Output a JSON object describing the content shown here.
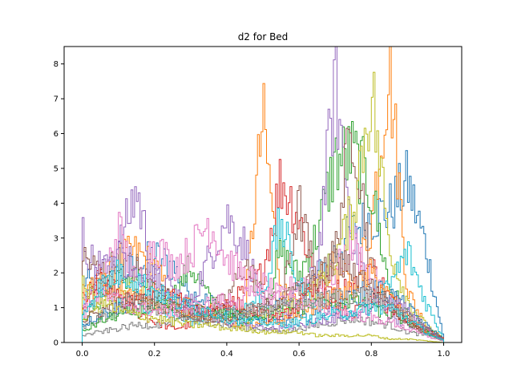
{
  "chart_data": {
    "type": "line",
    "title": "d2 for Bed",
    "xlabel": "",
    "ylabel": "",
    "xlim": [
      -0.05,
      1.05
    ],
    "ylim": [
      0,
      8.5
    ],
    "x_ticks": [
      "0.0",
      "0.2",
      "0.4",
      "0.6",
      "0.8",
      "1.0"
    ],
    "y_ticks": [
      "0",
      "1",
      "2",
      "3",
      "4",
      "5",
      "6",
      "7",
      "8"
    ],
    "grid": false,
    "legend": "none",
    "style": "step histograms, density-normalized, one per sample",
    "series_colors": [
      "#1f77b4",
      "#ff7f0e",
      "#2ca02c",
      "#d62728",
      "#9467bd",
      "#8c564b",
      "#e377c2",
      "#7f7f7f",
      "#bcbd22",
      "#17becf"
    ],
    "series": [
      {
        "x": [
          0.0,
          0.05,
          0.1,
          0.15,
          0.2,
          0.25,
          0.3,
          0.35,
          0.4,
          0.45,
          0.5,
          0.55,
          0.6,
          0.65,
          0.7,
          0.75,
          0.8,
          0.85,
          0.9,
          0.95,
          1.0
        ],
        "values": [
          1.8,
          1.6,
          1.9,
          2.2,
          2.5,
          2.2,
          1.4,
          1.2,
          1.0,
          0.8,
          0.9,
          1.1,
          1.4,
          1.9,
          2.6,
          3.2,
          3.6,
          3.8,
          4.6,
          2.8,
          0.1
        ]
      },
      {
        "x": [
          0.0,
          0.05,
          0.1,
          0.15,
          0.2,
          0.25,
          0.3,
          0.35,
          0.4,
          0.45,
          0.5,
          0.55,
          0.6,
          0.65,
          0.7,
          0.75,
          0.8,
          0.85,
          0.9,
          0.95,
          1.0
        ],
        "values": [
          0.9,
          1.4,
          2.4,
          2.6,
          2.2,
          1.2,
          1.1,
          1.0,
          0.6,
          0.9,
          6.4,
          1.6,
          1.0,
          1.8,
          2.2,
          1.6,
          3.4,
          8.1,
          1.5,
          0.5,
          0.1
        ]
      },
      {
        "x": [
          0.0,
          0.05,
          0.1,
          0.15,
          0.2,
          0.25,
          0.3,
          0.35,
          0.4,
          0.45,
          0.5,
          0.55,
          0.6,
          0.65,
          0.7,
          0.75,
          0.8,
          0.85,
          0.9,
          0.95,
          1.0
        ],
        "values": [
          0.7,
          1.2,
          1.8,
          1.9,
          1.4,
          1.3,
          2.2,
          1.3,
          0.8,
          0.6,
          0.9,
          2.6,
          1.9,
          3.1,
          5.2,
          5.4,
          4.4,
          1.6,
          0.8,
          0.4,
          0.1
        ]
      },
      {
        "x": [
          0.0,
          0.05,
          0.1,
          0.15,
          0.2,
          0.25,
          0.3,
          0.35,
          0.4,
          0.45,
          0.5,
          0.55,
          0.6,
          0.65,
          0.7,
          0.75,
          0.8,
          0.85,
          0.9,
          0.95,
          1.0
        ],
        "values": [
          1.2,
          1.7,
          1.1,
          0.9,
          0.6,
          0.4,
          0.5,
          0.8,
          1.0,
          1.5,
          2.0,
          4.7,
          3.6,
          1.7,
          1.5,
          1.6,
          2.2,
          1.3,
          0.8,
          0.4,
          0.1
        ]
      },
      {
        "x": [
          0.0,
          0.05,
          0.1,
          0.15,
          0.2,
          0.25,
          0.3,
          0.35,
          0.4,
          0.45,
          0.5,
          0.55,
          0.6,
          0.65,
          0.7,
          0.75,
          0.8,
          0.85,
          0.9,
          0.95,
          1.0
        ],
        "values": [
          3.1,
          1.8,
          2.6,
          4.4,
          1.9,
          1.5,
          1.1,
          2.4,
          3.6,
          2.8,
          1.1,
          0.8,
          1.0,
          2.2,
          7.4,
          3.0,
          1.4,
          0.8,
          0.5,
          0.3,
          0.1
        ]
      },
      {
        "x": [
          0.0,
          0.05,
          0.1,
          0.15,
          0.2,
          0.25,
          0.3,
          0.35,
          0.4,
          0.45,
          0.5,
          0.55,
          0.6,
          0.65,
          0.7,
          0.75,
          0.8,
          0.85,
          0.9,
          0.95,
          1.0
        ],
        "values": [
          2.5,
          2.0,
          2.3,
          2.1,
          1.6,
          1.2,
          0.9,
          1.0,
          1.2,
          2.3,
          1.4,
          1.1,
          3.9,
          1.7,
          2.6,
          6.5,
          2.1,
          1.0,
          0.6,
          0.3,
          0.1
        ]
      },
      {
        "x": [
          0.0,
          0.05,
          0.1,
          0.15,
          0.2,
          0.25,
          0.3,
          0.35,
          0.4,
          0.45,
          0.5,
          0.55,
          0.6,
          0.65,
          0.7,
          0.75,
          0.8,
          0.85,
          0.9,
          0.95,
          1.0
        ],
        "values": [
          0.8,
          1.4,
          3.3,
          1.6,
          2.9,
          2.2,
          2.6,
          3.5,
          2.4,
          1.9,
          1.7,
          1.3,
          1.8,
          1.5,
          2.0,
          2.8,
          1.9,
          1.2,
          0.8,
          0.4,
          0.1
        ]
      },
      {
        "x": [
          0.0,
          0.05,
          0.1,
          0.15,
          0.2,
          0.25,
          0.3,
          0.35,
          0.4,
          0.45,
          0.5,
          0.55,
          0.6,
          0.65,
          0.7,
          0.75,
          0.8,
          0.85,
          0.9,
          0.95,
          1.0
        ],
        "values": [
          0.4,
          0.7,
          0.9,
          1.1,
          1.0,
          0.8,
          0.7,
          0.6,
          0.5,
          0.4,
          0.4,
          0.3,
          0.4,
          0.5,
          0.6,
          0.7,
          0.6,
          0.5,
          0.3,
          0.2,
          0.05
        ]
      },
      {
        "x": [
          0.0,
          0.05,
          0.1,
          0.15,
          0.2,
          0.25,
          0.3,
          0.35,
          0.4,
          0.45,
          0.5,
          0.55,
          0.6,
          0.65,
          0.7,
          0.75,
          0.8,
          0.85,
          0.9,
          0.95,
          1.0
        ],
        "values": [
          0.6,
          1.0,
          1.3,
          1.5,
          1.4,
          1.1,
          0.9,
          0.8,
          0.7,
          0.7,
          0.8,
          0.9,
          1.2,
          1.6,
          2.4,
          3.8,
          7.3,
          2.8,
          1.2,
          0.5,
          0.1
        ]
      },
      {
        "x": [
          0.0,
          0.05,
          0.1,
          0.15,
          0.2,
          0.25,
          0.3,
          0.35,
          0.4,
          0.45,
          0.5,
          0.55,
          0.6,
          0.65,
          0.7,
          0.75,
          0.8,
          0.85,
          0.9,
          0.95,
          1.0
        ],
        "values": [
          1.2,
          1.5,
          1.3,
          1.1,
          0.9,
          0.8,
          0.6,
          0.7,
          0.8,
          1.0,
          1.4,
          3.5,
          1.6,
          1.2,
          0.9,
          0.8,
          1.0,
          1.6,
          2.6,
          1.2,
          0.1
        ]
      },
      {
        "x": [
          0.0,
          0.05,
          0.1,
          0.15,
          0.2,
          0.25,
          0.3,
          0.35,
          0.4,
          0.45,
          0.5,
          0.55,
          0.6,
          0.65,
          0.7,
          0.75,
          0.8,
          0.85,
          0.9,
          0.95,
          1.0
        ],
        "values": [
          0.5,
          0.8,
          1.0,
          1.2,
          1.3,
          1.2,
          1.0,
          0.9,
          0.8,
          0.7,
          0.6,
          0.6,
          0.7,
          0.8,
          1.0,
          1.3,
          1.6,
          1.4,
          1.0,
          0.5,
          0.1
        ]
      },
      {
        "x": [
          0.0,
          0.05,
          0.1,
          0.15,
          0.2,
          0.25,
          0.3,
          0.35,
          0.4,
          0.45,
          0.5,
          0.55,
          0.6,
          0.65,
          0.7,
          0.75,
          0.8,
          0.85,
          0.9,
          0.95,
          1.0
        ],
        "values": [
          1.4,
          1.7,
          1.5,
          1.3,
          1.2,
          1.0,
          0.9,
          0.8,
          0.6,
          0.5,
          0.5,
          0.6,
          0.8,
          1.1,
          1.3,
          1.5,
          2.0,
          1.3,
          0.7,
          0.3,
          0.05
        ]
      },
      {
        "x": [
          0.0,
          0.05,
          0.1,
          0.15,
          0.2,
          0.25,
          0.3,
          0.35,
          0.4,
          0.45,
          0.5,
          0.55,
          0.6,
          0.65,
          0.7,
          0.75,
          0.8,
          0.85,
          0.9,
          0.95,
          1.0
        ],
        "values": [
          0.3,
          0.6,
          0.8,
          0.9,
          1.0,
          1.0,
          0.9,
          0.9,
          0.8,
          0.8,
          0.8,
          0.9,
          1.0,
          1.1,
          1.2,
          1.2,
          1.0,
          0.8,
          0.6,
          0.3,
          0.05
        ]
      },
      {
        "x": [
          0.0,
          0.05,
          0.1,
          0.15,
          0.2,
          0.25,
          0.3,
          0.35,
          0.4,
          0.45,
          0.5,
          0.55,
          0.6,
          0.65,
          0.7,
          0.75,
          0.8,
          0.85,
          0.9,
          0.95,
          1.0
        ],
        "values": [
          1.0,
          1.9,
          1.4,
          1.1,
          1.5,
          1.3,
          1.0,
          0.9,
          1.2,
          1.0,
          0.8,
          0.7,
          1.1,
          1.5,
          1.0,
          0.8,
          1.3,
          1.0,
          0.6,
          0.4,
          0.1
        ]
      },
      {
        "x": [
          0.0,
          0.05,
          0.1,
          0.15,
          0.2,
          0.25,
          0.3,
          0.35,
          0.4,
          0.45,
          0.5,
          0.55,
          0.6,
          0.65,
          0.7,
          0.75,
          0.8,
          0.85,
          0.9,
          0.95,
          1.0
        ],
        "values": [
          0.9,
          2.3,
          2.6,
          2.1,
          1.8,
          1.3,
          1.0,
          0.8,
          0.6,
          0.5,
          0.4,
          0.4,
          0.5,
          0.6,
          0.7,
          0.8,
          1.1,
          1.2,
          0.9,
          0.4,
          0.1
        ]
      },
      {
        "x": [
          0.0,
          0.05,
          0.1,
          0.15,
          0.2,
          0.25,
          0.3,
          0.35,
          0.4,
          0.45,
          0.5,
          0.55,
          0.6,
          0.65,
          0.7,
          0.75,
          0.8,
          0.85,
          0.9,
          0.95,
          1.0
        ],
        "values": [
          0.6,
          0.9,
          1.1,
          1.3,
          1.1,
          1.0,
          0.8,
          0.7,
          0.7,
          0.8,
          1.0,
          1.2,
          1.5,
          1.8,
          2.3,
          2.1,
          1.6,
          1.1,
          0.6,
          0.3,
          0.05
        ]
      },
      {
        "x": [
          0.0,
          0.05,
          0.1,
          0.15,
          0.2,
          0.25,
          0.3,
          0.35,
          0.4,
          0.45,
          0.5,
          0.55,
          0.6,
          0.65,
          0.7,
          0.75,
          0.8,
          0.85,
          0.9,
          0.95,
          1.0
        ],
        "values": [
          1.1,
          1.3,
          1.2,
          1.0,
          0.9,
          0.9,
          1.0,
          1.1,
          1.2,
          1.3,
          1.4,
          1.3,
          1.2,
          1.0,
          0.9,
          0.8,
          0.7,
          0.6,
          0.4,
          0.2,
          0.05
        ]
      },
      {
        "x": [
          0.0,
          0.05,
          0.1,
          0.15,
          0.2,
          0.25,
          0.3,
          0.35,
          0.4,
          0.45,
          0.5,
          0.55,
          0.6,
          0.65,
          0.7,
          0.75,
          0.8,
          0.85,
          0.9,
          0.95,
          1.0
        ],
        "values": [
          0.2,
          0.3,
          0.4,
          0.5,
          0.5,
          0.6,
          0.6,
          0.7,
          0.8,
          0.9,
          1.0,
          1.0,
          1.1,
          1.2,
          1.3,
          1.4,
          1.3,
          1.1,
          0.8,
          0.4,
          0.1
        ]
      },
      {
        "x": [
          0.0,
          0.05,
          0.1,
          0.15,
          0.2,
          0.25,
          0.3,
          0.35,
          0.4,
          0.45,
          0.5,
          0.55,
          0.6,
          0.65,
          0.7,
          0.75,
          0.8,
          0.85,
          0.9,
          0.95,
          1.0
        ],
        "values": [
          1.6,
          1.2,
          0.9,
          0.8,
          0.7,
          0.6,
          0.5,
          0.5,
          0.4,
          0.4,
          0.3,
          0.3,
          0.3,
          0.2,
          0.2,
          0.2,
          0.2,
          0.1,
          0.1,
          0.05,
          0.0
        ]
      },
      {
        "x": [
          0.0,
          0.05,
          0.1,
          0.15,
          0.2,
          0.25,
          0.3,
          0.35,
          0.4,
          0.45,
          0.5,
          0.55,
          0.6,
          0.65,
          0.7,
          0.75,
          0.8,
          0.85,
          0.9,
          0.95,
          1.0
        ],
        "values": [
          0.8,
          1.6,
          2.0,
          1.8,
          1.5,
          1.2,
          1.0,
          0.9,
          0.7,
          0.6,
          0.6,
          0.5,
          0.6,
          0.7,
          0.8,
          0.9,
          1.0,
          1.0,
          0.7,
          0.3,
          0.05
        ]
      }
    ]
  }
}
